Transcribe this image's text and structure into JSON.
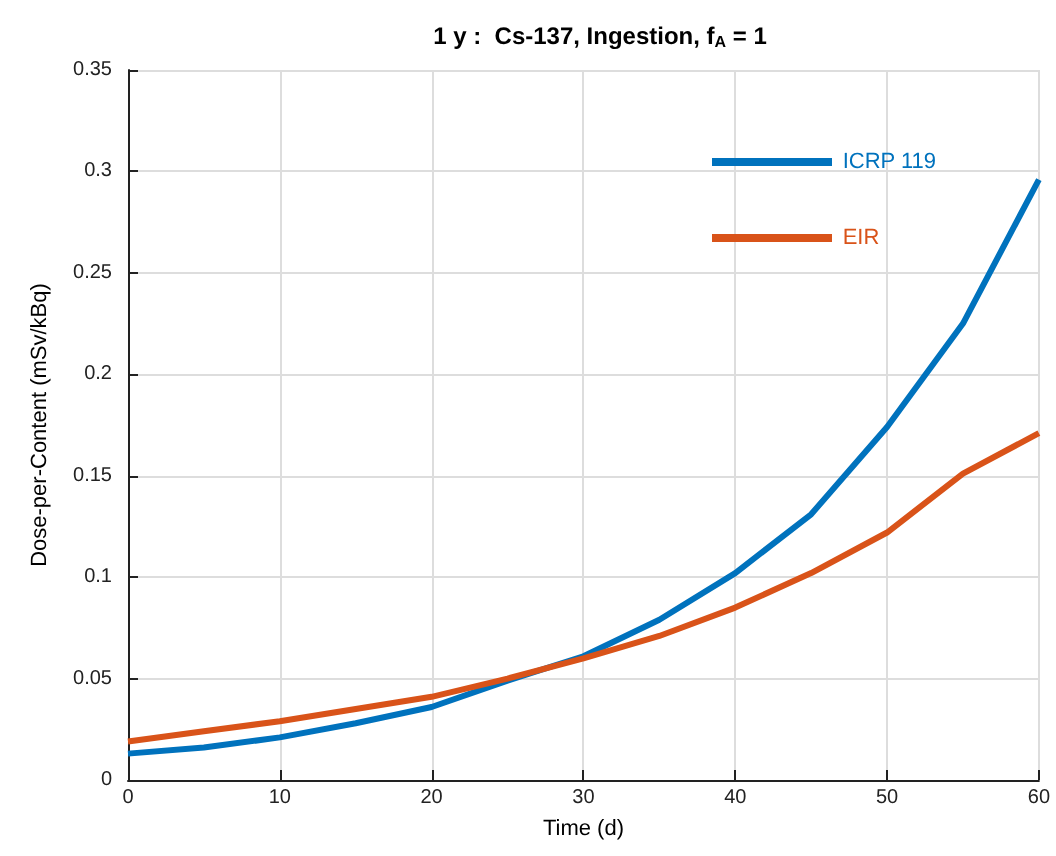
{
  "chart_data": {
    "type": "line",
    "title": "1 y :  Cs-137, Ingestion, f$_{A}$ = 1",
    "xlabel": "Time (d)",
    "ylabel": "Dose-per-Content (mSv/kBq)",
    "x": [
      0,
      5,
      10,
      15,
      20,
      25,
      30,
      35,
      40,
      45,
      50,
      55,
      60
    ],
    "series": [
      {
        "name": "ICRP 119",
        "color": "#0072bd",
        "values": [
          0.013,
          0.016,
          0.021,
          0.028,
          0.036,
          0.049,
          0.061,
          0.079,
          0.102,
          0.131,
          0.174,
          0.225,
          0.296
        ]
      },
      {
        "name": "EIR",
        "color": "#d95319",
        "values": [
          0.019,
          0.024,
          0.029,
          0.035,
          0.041,
          0.05,
          0.06,
          0.071,
          0.085,
          0.102,
          0.122,
          0.151,
          0.171
        ]
      }
    ],
    "xlim": [
      0,
      60
    ],
    "xticks": [
      0,
      10,
      20,
      30,
      40,
      50,
      60
    ],
    "ylim": [
      0,
      0.35
    ],
    "yticks": [
      0,
      0.05,
      0.1,
      0.15,
      0.2,
      0.25,
      0.3,
      0.35
    ],
    "grid": true,
    "legend": "top right",
    "line_style": "solid",
    "marker": "none"
  }
}
